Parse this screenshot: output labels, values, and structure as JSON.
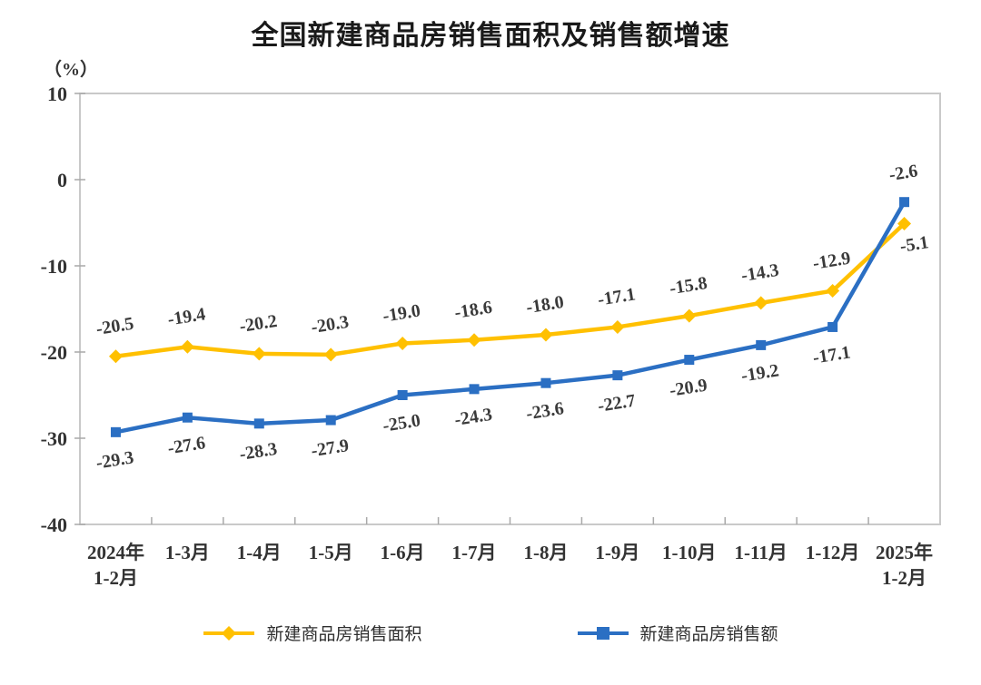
{
  "title": "全国新建商品房销售面积及销售额增速",
  "y_axis_unit": "（%）",
  "colors": {
    "area_series": "#FFC000",
    "amount_series": "#2B6FC3",
    "axis_border": "#c9c9c9",
    "tick_mark": "#a9a9a9",
    "label_text": "#3a3a3a",
    "tick_text": "#333333"
  },
  "chart_data": {
    "type": "line",
    "categories": [
      "2024年\n1-2月",
      "1-3月",
      "1-4月",
      "1-5月",
      "1-6月",
      "1-7月",
      "1-8月",
      "1-9月",
      "1-10月",
      "1-11月",
      "1-12月",
      "2025年\n1-2月"
    ],
    "series": [
      {
        "name": "新建商品房销售面积",
        "marker": "diamond",
        "color": "#FFC000",
        "values": [
          -20.5,
          -19.4,
          -20.2,
          -20.3,
          -19.0,
          -18.6,
          -18.0,
          -17.1,
          -15.8,
          -14.3,
          -12.9,
          -5.1
        ],
        "labels": [
          "-20.5",
          "-19.4",
          "-20.2",
          "-20.3",
          "-19.0",
          "-18.6",
          "-18.0",
          "-17.1",
          "-15.8",
          "-14.3",
          "-12.9",
          "-5.1"
        ]
      },
      {
        "name": "新建商品房销售额",
        "marker": "square",
        "color": "#2B6FC3",
        "values": [
          -29.3,
          -27.6,
          -28.3,
          -27.9,
          -25.0,
          -24.3,
          -23.6,
          -22.7,
          -20.9,
          -19.2,
          -17.1,
          -2.6
        ],
        "labels": [
          "-29.3",
          "-27.6",
          "-28.3",
          "-27.9",
          "-25.0",
          "-24.3",
          "-23.6",
          "-22.7",
          "-20.9",
          "-19.2",
          "-17.1",
          "-2.6"
        ]
      }
    ],
    "ylim": [
      -40,
      10
    ],
    "y_ticks": [
      10,
      0,
      -10,
      -20,
      -30,
      -40
    ],
    "grid": false,
    "legend_position": "bottom"
  }
}
